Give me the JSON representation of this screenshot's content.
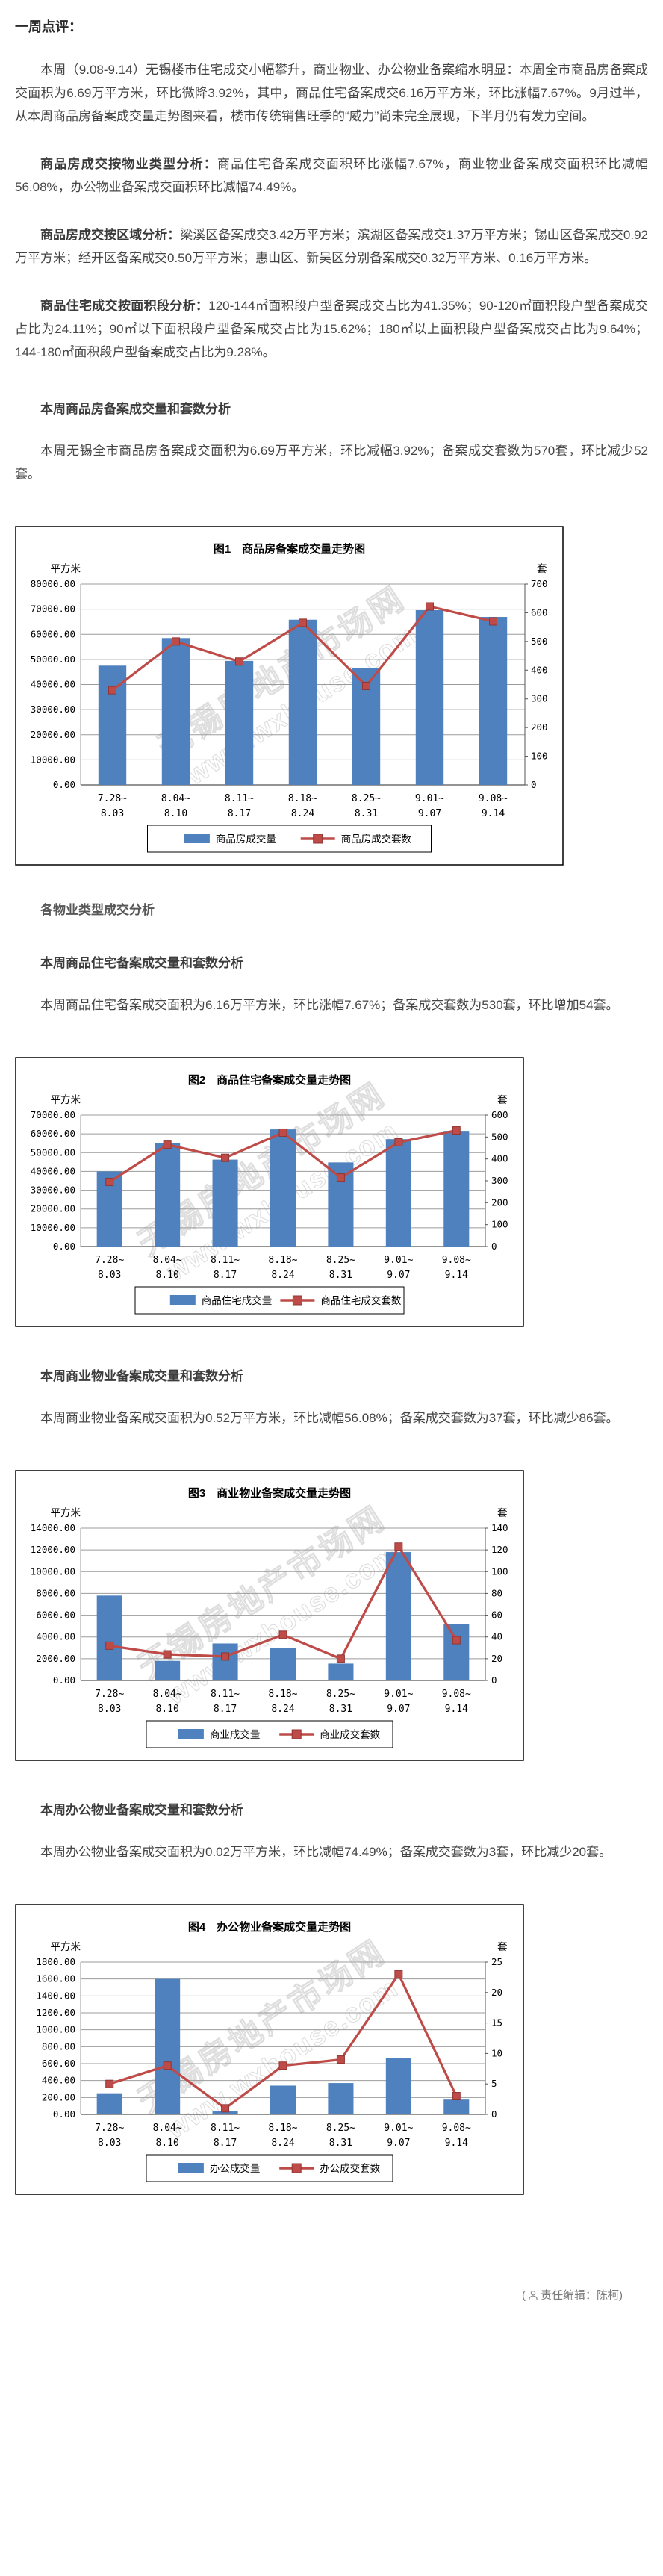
{
  "content": {
    "intro_heading": "一周点评：",
    "intro_paragraph": "本周（9.08-9.14）无锡楼市住宅成交小幅攀升，商业物业、办公物业备案缩水明显：本周全市商品房备案成交面积为6.69万平方米，环比微降3.92%，其中，商品住宅备案成交6.16万平方米，环比涨幅7.67%。9月过半，从本周商品房备案成交量走势图来看，楼市传统销售旺季的“威力”尚未完全展现，下半月仍有发力空间。",
    "analysis_items": [
      {
        "lead": "商品房成交按物业类型分析：",
        "text": "商品住宅备案成交面积环比涨幅7.67%，商业物业备案成交面积环比减幅56.08%，办公物业备案成交面积环比减幅74.49%。"
      },
      {
        "lead": "商品房成交按区域分析：",
        "text": "梁溪区备案成交3.42万平方米；滨湖区备案成交1.37万平方米；锡山区备案成交0.92万平方米；经开区备案成交0.50万平方米；惠山区、新吴区分别备案成交0.32万平方米、0.16万平方米。"
      },
      {
        "lead": "商品住宅成交按面积段分析：",
        "text": "120-144㎡面积段户型备案成交占比为41.35%；90-120㎡面积段户型备案成交占比为24.11%；90㎡以下面积段户型备案成交占比为15.62%；180㎡以上面积段户型备案成交占比为9.64%；144-180㎡面积段户型备案成交占比为9.28%。"
      }
    ],
    "group_heading": "各物业类型成交分析",
    "sections": [
      {
        "heading": "本周商品房备案成交量和套数分析",
        "paragraph": "本周无锡全市商品房备案成交面积为6.69万平方米，环比减幅3.92%；备案成交套数为570套，环比减少52套。"
      },
      {
        "heading": "本周商品住宅备案成交量和套数分析",
        "paragraph": "本周商品住宅备案成交面积为6.16万平方米，环比涨幅7.67%；备案成交套数为530套，环比增加54套。"
      },
      {
        "heading": "本周商业物业备案成交量和套数分析",
        "paragraph": "本周商业物业备案成交面积为0.52万平方米，环比减幅56.08%；备案成交套数为37套，环比减少86套。"
      },
      {
        "heading": "本周办公物业备案成交量和套数分析",
        "paragraph": "本周办公物业备案成交面积为0.02万平方米，环比减幅74.49%；备案成交套数为3套，环比减少20套。"
      }
    ]
  },
  "watermark": {
    "line1": "无锡房地产市场网",
    "line2": "www.wxhouse.com"
  },
  "footer": {
    "open": "(",
    "editor": "责任编辑：陈柯",
    "close": ")"
  },
  "chart_data": [
    {
      "type": "bar+line",
      "title": "图1　商品房备案成交量走势图",
      "left_axis": {
        "unit": "平方米",
        "min": 0,
        "max": 80000,
        "step": 10000,
        "decimals": 2
      },
      "right_axis": {
        "unit": "套",
        "min": 0,
        "max": 700,
        "step": 100
      },
      "categories": [
        [
          "7.28~",
          "8.03"
        ],
        [
          "8.04~",
          "8.10"
        ],
        [
          "8.11~",
          "8.17"
        ],
        [
          "8.18~",
          "8.24"
        ],
        [
          "8.25~",
          "8.31"
        ],
        [
          "9.01~",
          "9.07"
        ],
        [
          "9.08~",
          "9.14"
        ]
      ],
      "series": [
        {
          "name": "商品房成交量",
          "type": "bar",
          "axis": "left",
          "color": "#4E81BD",
          "values": [
            47500,
            58500,
            49400,
            65800,
            46500,
            69600,
            66900
          ]
        },
        {
          "name": "商品房成交套数",
          "type": "line",
          "axis": "right",
          "color": "#BE4B48",
          "values": [
            330,
            500,
            430,
            565,
            345,
            622,
            570
          ]
        }
      ]
    },
    {
      "type": "bar+line",
      "title": "图2　商品住宅备案成交量走势图",
      "left_axis": {
        "unit": "平方米",
        "min": 0,
        "max": 70000,
        "step": 10000,
        "decimals": 2
      },
      "right_axis": {
        "unit": "套",
        "min": 0,
        "max": 600,
        "step": 100
      },
      "categories": [
        [
          "7.28~",
          "8.03"
        ],
        [
          "8.04~",
          "8.10"
        ],
        [
          "8.11~",
          "8.17"
        ],
        [
          "8.18~",
          "8.24"
        ],
        [
          "8.25~",
          "8.31"
        ],
        [
          "9.01~",
          "9.07"
        ],
        [
          "9.08~",
          "9.14"
        ]
      ],
      "series": [
        {
          "name": "商品住宅成交量",
          "type": "bar",
          "axis": "left",
          "color": "#4E81BD",
          "values": [
            40000,
            55100,
            46300,
            62400,
            44800,
            57200,
            61600
          ]
        },
        {
          "name": "商品住宅成交套数",
          "type": "line",
          "axis": "right",
          "color": "#BE4B48",
          "values": [
            295,
            465,
            405,
            520,
            315,
            476,
            530
          ]
        }
      ]
    },
    {
      "type": "bar+line",
      "title": "图3　商业物业备案成交量走势图",
      "left_axis": {
        "unit": "平方米",
        "min": 0,
        "max": 14000,
        "step": 2000,
        "decimals": 2
      },
      "right_axis": {
        "unit": "套",
        "min": 0,
        "max": 140,
        "step": 20
      },
      "categories": [
        [
          "7.28~",
          "8.03"
        ],
        [
          "8.04~",
          "8.10"
        ],
        [
          "8.11~",
          "8.17"
        ],
        [
          "8.18~",
          "8.24"
        ],
        [
          "8.25~",
          "8.31"
        ],
        [
          "9.01~",
          "9.07"
        ],
        [
          "9.08~",
          "9.14"
        ]
      ],
      "series": [
        {
          "name": "商业成交量",
          "type": "bar",
          "axis": "left",
          "color": "#4E81BD",
          "values": [
            7800,
            1800,
            3400,
            3000,
            1550,
            11800,
            5200
          ]
        },
        {
          "name": "商业成交套数",
          "type": "line",
          "axis": "right",
          "color": "#BE4B48",
          "values": [
            32,
            24,
            22,
            42,
            20,
            123,
            37
          ]
        }
      ]
    },
    {
      "type": "bar+line",
      "title": "图4　办公物业备案成交量走势图",
      "left_axis": {
        "unit": "平方米",
        "min": 0,
        "max": 1800,
        "step": 200,
        "decimals": 2
      },
      "right_axis": {
        "unit": "套",
        "min": 0,
        "max": 25,
        "step": 5
      },
      "categories": [
        [
          "7.28~",
          "8.03"
        ],
        [
          "8.04~",
          "8.10"
        ],
        [
          "8.11~",
          "8.17"
        ],
        [
          "8.18~",
          "8.24"
        ],
        [
          "8.25~",
          "8.31"
        ],
        [
          "9.01~",
          "9.07"
        ],
        [
          "9.08~",
          "9.14"
        ]
      ],
      "series": [
        {
          "name": "办公成交量",
          "type": "bar",
          "axis": "left",
          "color": "#4E81BD",
          "values": [
            250,
            1600,
            35,
            340,
            370,
            670,
            175
          ]
        },
        {
          "name": "办公成交套数",
          "type": "line",
          "axis": "right",
          "color": "#BE4B48",
          "values": [
            5,
            8,
            1,
            8,
            9,
            23,
            3
          ]
        }
      ]
    }
  ]
}
